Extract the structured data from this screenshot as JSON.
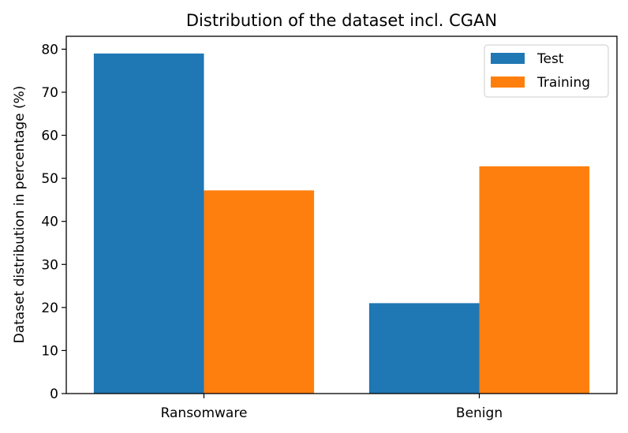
{
  "chart_data": {
    "type": "bar",
    "title": "Distribution of the dataset incl. CGAN",
    "xlabel": "",
    "ylabel": "Dataset distribution in percentage (%)",
    "categories": [
      "Ransomware",
      "Benign"
    ],
    "series": [
      {
        "name": "Test",
        "values": [
          79.0,
          21.0
        ],
        "color": "#1f77b4"
      },
      {
        "name": "Training",
        "values": [
          47.2,
          52.8
        ],
        "color": "#ff7f0e"
      }
    ],
    "ylim": [
      0,
      83
    ],
    "yticks": [
      0,
      10,
      20,
      30,
      40,
      50,
      60,
      70,
      80
    ],
    "grid": false,
    "legend_position": "top-right"
  }
}
